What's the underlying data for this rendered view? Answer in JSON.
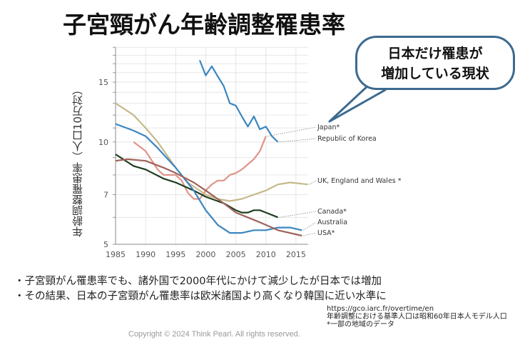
{
  "title": "子宮頸がん年齢調整罹患率",
  "callout": {
    "line1": "日本だけ罹患が",
    "line2": "増加している現状",
    "border_color": "#3d6a8f"
  },
  "bullets": [
    "・子宮頸がん罹患率でも、諸外国で2000年代にかけて減少したが日本では増加",
    "・その結果、日本の子宮頸がん罹患率は欧米諸国より高くなり韓国に近い水準に"
  ],
  "source": {
    "url": "https://gco.iarc.fr/overtime/en",
    "note1": "年齢調整における基準人口は昭和60年日本人モデル人口",
    "note2": "*一部の地域のデータ"
  },
  "copyright": "Copyright © 2024 Think Pearl. All rights reserved.",
  "chart_data": {
    "type": "line",
    "ylabel": "年齢調整罹患率（人口10万対）",
    "xlabel": "",
    "xlim": [
      1985,
      2017
    ],
    "ylim": [
      5,
      19
    ],
    "yscale": "log",
    "xticks": [
      "1985",
      "1990",
      "1995",
      "2000",
      "2005",
      "2010",
      "2015"
    ],
    "yticks": [
      "5",
      "7",
      "10",
      "15"
    ],
    "grid": true,
    "legend": "direct labels at right",
    "series": [
      {
        "name": "Japan*",
        "color": "#e0948a",
        "x": [
          1988,
          1990,
          1992,
          1993,
          1994,
          1995,
          1996,
          1997,
          1998,
          1999,
          2000,
          2001,
          2002,
          2003,
          2004,
          2005,
          2006,
          2007,
          2008,
          2009,
          2010
        ],
        "y": [
          10.0,
          9.4,
          8.3,
          8.0,
          8.0,
          8.0,
          7.7,
          7.1,
          6.8,
          6.8,
          7.2,
          7.5,
          7.7,
          7.7,
          8.0,
          8.1,
          8.3,
          8.6,
          8.9,
          9.4,
          10.4
        ]
      },
      {
        "name": "Republic of Korea",
        "color": "#3a86c0",
        "x": [
          1999,
          2000,
          2001,
          2002,
          2003,
          2004,
          2005,
          2006,
          2007,
          2008,
          2009,
          2010,
          2011,
          2012
        ],
        "y": [
          17.4,
          15.7,
          16.7,
          15.6,
          14.6,
          13.0,
          12.8,
          11.9,
          11.1,
          11.9,
          10.9,
          11.1,
          10.4,
          10.0
        ]
      },
      {
        "name": "UK, England and Wales *",
        "color": "#c4b98a",
        "x": [
          1985,
          1988,
          1990,
          1992,
          1995,
          1997,
          2000,
          2002,
          2004,
          2006,
          2008,
          2010,
          2012,
          2014,
          2017
        ],
        "y": [
          13.0,
          12.0,
          11.0,
          10.0,
          8.4,
          7.6,
          7.0,
          6.8,
          6.7,
          6.8,
          7.0,
          7.2,
          7.5,
          7.6,
          7.5
        ]
      },
      {
        "name": "Canada*",
        "color": "#1f3d1f",
        "x": [
          1985,
          1988,
          1990,
          1993,
          1995,
          1998,
          2000,
          2003,
          2005,
          2006,
          2007,
          2008,
          2009,
          2010,
          2012
        ],
        "y": [
          9.2,
          8.5,
          8.3,
          7.8,
          7.6,
          7.2,
          6.9,
          6.6,
          6.3,
          6.2,
          6.2,
          6.3,
          6.3,
          6.2,
          6.0
        ]
      },
      {
        "name": "Australia",
        "color": "#3a86c0",
        "x": [
          1985,
          1988,
          1990,
          1992,
          1995,
          1998,
          2000,
          2002,
          2004,
          2006,
          2008,
          2010,
          2012,
          2014,
          2016
        ],
        "y": [
          11.3,
          10.8,
          10.4,
          9.6,
          8.4,
          7.2,
          6.3,
          5.7,
          5.4,
          5.4,
          5.5,
          5.5,
          5.6,
          5.6,
          5.5
        ]
      },
      {
        "name": "USA*",
        "color": "#a0625a",
        "x": [
          1985,
          1987,
          1990,
          1993,
          1995,
          1998,
          2000,
          2003,
          2005,
          2008,
          2010,
          2012,
          2016
        ],
        "y": [
          8.8,
          8.9,
          8.8,
          8.4,
          8.1,
          7.6,
          7.2,
          6.6,
          6.2,
          5.9,
          5.7,
          5.5,
          5.3
        ]
      }
    ]
  }
}
